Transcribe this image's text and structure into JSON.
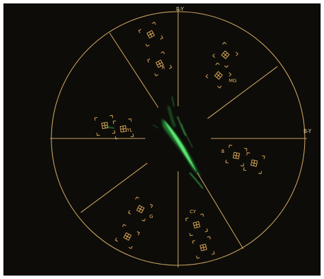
{
  "scope": {
    "axis_labels": {
      "r_minus_y": "R-Y",
      "b_minus_y": "B-Y"
    },
    "targets": [
      {
        "name": "red",
        "letter": "R"
      },
      {
        "name": "magenta",
        "letter": "MG"
      },
      {
        "name": "blue",
        "letter": "B"
      },
      {
        "name": "cyan",
        "letter": "CY"
      },
      {
        "name": "green",
        "letter": "G"
      },
      {
        "name": "yellow",
        "letter": "YL"
      }
    ],
    "colors": {
      "background": "#0d0c09",
      "graticule": "#caa260",
      "trace": "#3ddc5a"
    }
  }
}
